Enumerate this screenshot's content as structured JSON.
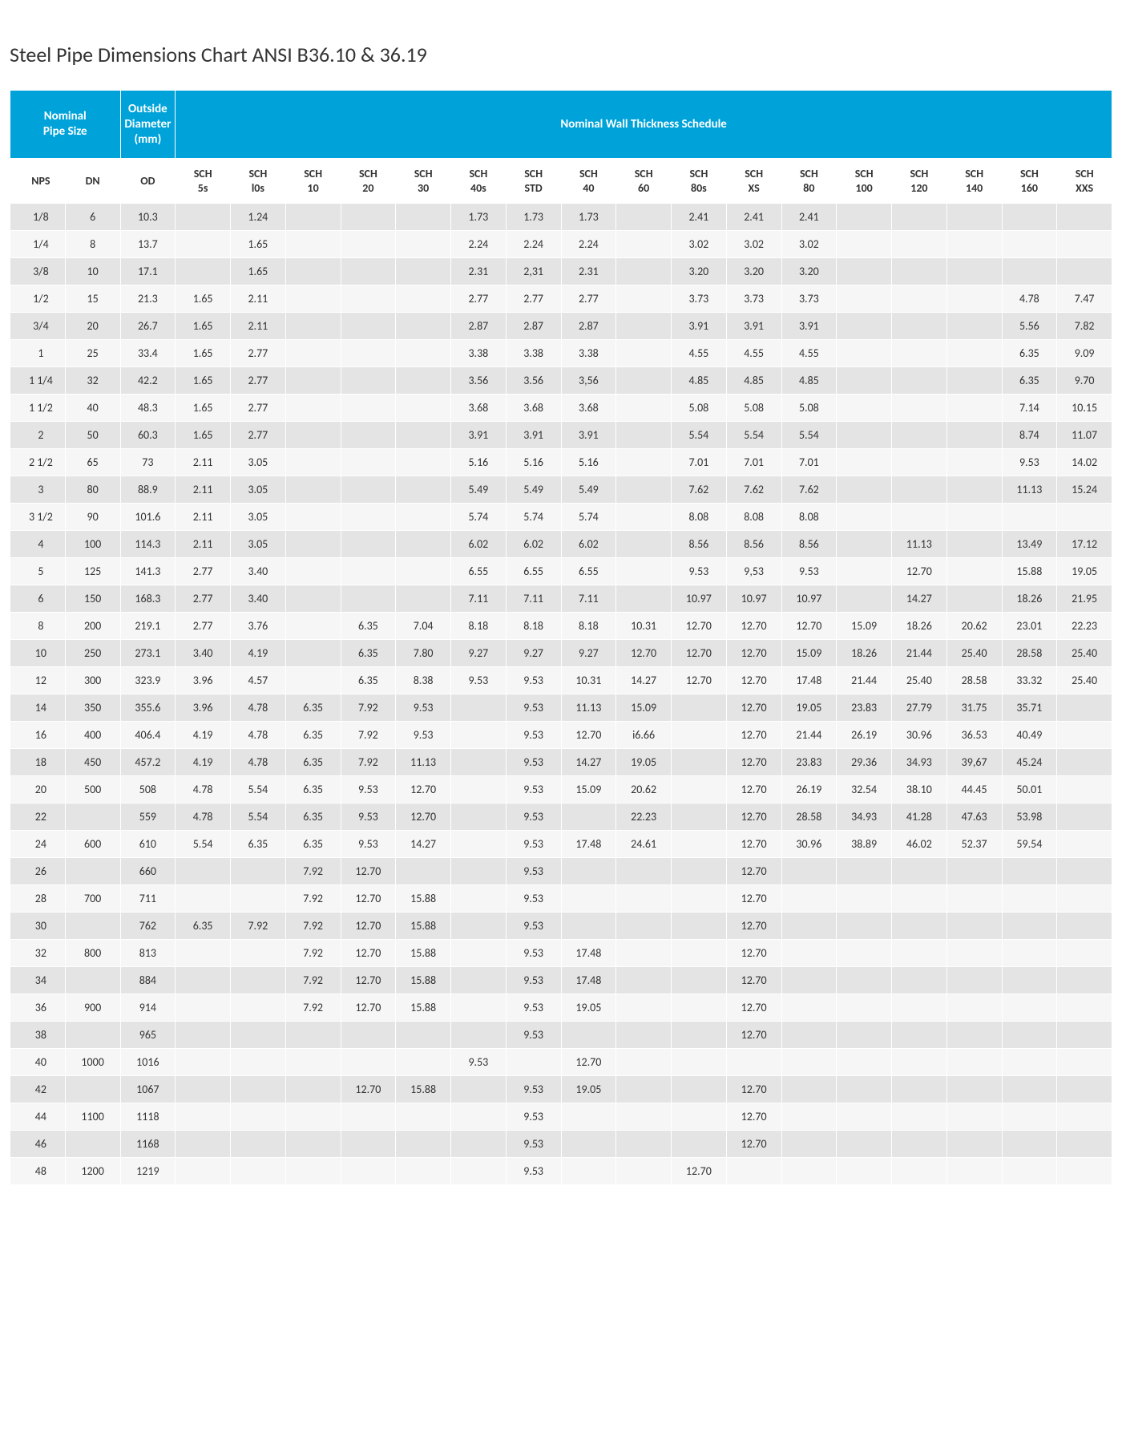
{
  "title": "Steel Pipe Dimensions Chart ANSI B36.10 & 36.19",
  "header_bg": "#00a3d9",
  "header_fg": "#ffffff",
  "row_odd_bg": "#e4e4e4",
  "row_even_bg": "#f6f6f6",
  "groups": [
    {
      "label": "Nominal Pipe Size",
      "span": 2
    },
    {
      "label": "Outside Diameter (mm)",
      "span": 1
    },
    {
      "label": "Nominal Wall Thickness Schedule",
      "span": 17
    }
  ],
  "columns": [
    {
      "key": "nps",
      "label": "NPS",
      "class": "c-nps"
    },
    {
      "key": "dn",
      "label": "DN",
      "class": "c-dn"
    },
    {
      "key": "od",
      "label": "OD",
      "class": "c-od"
    },
    {
      "key": "s5s",
      "label": "SCH\n5s",
      "class": "c-sch"
    },
    {
      "key": "s10s",
      "label": "SCH\nl0s",
      "class": "c-sch"
    },
    {
      "key": "s10",
      "label": "SCH\n10",
      "class": "c-sch"
    },
    {
      "key": "s20",
      "label": "SCH\n20",
      "class": "c-sch"
    },
    {
      "key": "s30",
      "label": "SCH\n30",
      "class": "c-sch"
    },
    {
      "key": "s40s",
      "label": "SCH\n40s",
      "class": "c-sch"
    },
    {
      "key": "sstd",
      "label": "SCH\nSTD",
      "class": "c-sch"
    },
    {
      "key": "s40",
      "label": "SCH\n40",
      "class": "c-sch"
    },
    {
      "key": "s60",
      "label": "SCH\n60",
      "class": "c-sch"
    },
    {
      "key": "s80s",
      "label": "SCH\n80s",
      "class": "c-sch"
    },
    {
      "key": "sxs",
      "label": "SCH\nXS",
      "class": "c-sch"
    },
    {
      "key": "s80",
      "label": "SCH\n80",
      "class": "c-sch"
    },
    {
      "key": "s100",
      "label": "SCH\n100",
      "class": "c-sch"
    },
    {
      "key": "s120",
      "label": "SCH\n120",
      "class": "c-sch"
    },
    {
      "key": "s140",
      "label": "SCH\n140",
      "class": "c-sch"
    },
    {
      "key": "s160",
      "label": "SCH\n160",
      "class": "c-sch"
    },
    {
      "key": "sxxs",
      "label": "SCH\nXXS",
      "class": "c-sch"
    }
  ],
  "rows": [
    {
      "nps": "1/8",
      "dn": "6",
      "od": "10.3",
      "s10s": "1.24",
      "s40s": "1.73",
      "sstd": "1.73",
      "s40": "1.73",
      "s80s": "2.41",
      "sxs": "2.41",
      "s80": "2.41"
    },
    {
      "nps": "1/4",
      "dn": "8",
      "od": "13.7",
      "s10s": "1.65",
      "s40s": "2.24",
      "sstd": "2.24",
      "s40": "2.24",
      "s80s": "3.02",
      "sxs": "3.02",
      "s80": "3.02"
    },
    {
      "nps": "3/8",
      "dn": "10",
      "od": "17.1",
      "s10s": "1.65",
      "s40s": "2.31",
      "sstd": "2,31",
      "s40": "2.31",
      "s80s": "3.20",
      "sxs": "3.20",
      "s80": "3.20"
    },
    {
      "nps": "1/2",
      "dn": "15",
      "od": "21.3",
      "s5s": "1.65",
      "s10s": "2.11",
      "s40s": "2.77",
      "sstd": "2.77",
      "s40": "2.77",
      "s80s": "3.73",
      "sxs": "3.73",
      "s80": "3.73",
      "s160": "4.78",
      "sxxs": "7.47"
    },
    {
      "nps": "3/4",
      "dn": "20",
      "od": "26.7",
      "s5s": "1.65",
      "s10s": "2.11",
      "s40s": "2.87",
      "sstd": "2.87",
      "s40": "2.87",
      "s80s": "3.91",
      "sxs": "3.91",
      "s80": "3.91",
      "s160": "5.56",
      "sxxs": "7.82"
    },
    {
      "nps": "1",
      "dn": "25",
      "od": "33.4",
      "s5s": "1.65",
      "s10s": "2.77",
      "s40s": "3.38",
      "sstd": "3.38",
      "s40": "3.38",
      "s80s": "4.55",
      "sxs": "4.55",
      "s80": "4.55",
      "s160": "6.35",
      "sxxs": "9.09"
    },
    {
      "nps": "1 1/4",
      "dn": "32",
      "od": "42.2",
      "s5s": "1.65",
      "s10s": "2.77",
      "s40s": "3.56",
      "sstd": "3.56",
      "s40": "3,56",
      "s80s": "4.85",
      "sxs": "4.85",
      "s80": "4.85",
      "s160": "6.35",
      "sxxs": "9.70"
    },
    {
      "nps": "1 1/2",
      "dn": "40",
      "od": "48.3",
      "s5s": "1.65",
      "s10s": "2.77",
      "s40s": "3.68",
      "sstd": "3.68",
      "s40": "3.68",
      "s80s": "5.08",
      "sxs": "5.08",
      "s80": "5.08",
      "s160": "7.14",
      "sxxs": "10.15"
    },
    {
      "nps": "2",
      "dn": "50",
      "od": "60.3",
      "s5s": "1.65",
      "s10s": "2.77",
      "s40s": "3.91",
      "sstd": "3.91",
      "s40": "3.91",
      "s80s": "5.54",
      "sxs": "5.54",
      "s80": "5.54",
      "s160": "8.74",
      "sxxs": "11.07"
    },
    {
      "nps": "2 1/2",
      "dn": "65",
      "od": "73",
      "s5s": "2.11",
      "s10s": "3.05",
      "s40s": "5.16",
      "sstd": "5.16",
      "s40": "5.16",
      "s80s": "7.01",
      "sxs": "7.01",
      "s80": "7.01",
      "s160": "9.53",
      "sxxs": "14.02"
    },
    {
      "nps": "3",
      "dn": "80",
      "od": "88.9",
      "s5s": "2.11",
      "s10s": "3.05",
      "s40s": "5.49",
      "sstd": "5.49",
      "s40": "5.49",
      "s80s": "7.62",
      "sxs": "7.62",
      "s80": "7.62",
      "s160": "11.13",
      "sxxs": "15.24"
    },
    {
      "nps": "3 1/2",
      "dn": "90",
      "od": "101.6",
      "s5s": "2.11",
      "s10s": "3.05",
      "s40s": "5.74",
      "sstd": "5.74",
      "s40": "5.74",
      "s80s": "8.08",
      "sxs": "8.08",
      "s80": "8.08"
    },
    {
      "nps": "4",
      "dn": "100",
      "od": "114.3",
      "s5s": "2.11",
      "s10s": "3.05",
      "s40s": "6.02",
      "sstd": "6.02",
      "s40": "6.02",
      "s80s": "8.56",
      "sxs": "8.56",
      "s80": "8.56",
      "s120": "11.13",
      "s160": "13.49",
      "sxxs": "17.12"
    },
    {
      "nps": "5",
      "dn": "125",
      "od": "141.3",
      "s5s": "2.77",
      "s10s": "3.40",
      "s40s": "6.55",
      "sstd": "6.55",
      "s40": "6.55",
      "s80s": "9.53",
      "sxs": "9,53",
      "s80": "9.53",
      "s120": "12.70",
      "s160": "15.88",
      "sxxs": "19.05"
    },
    {
      "nps": "6",
      "dn": "150",
      "od": "168.3",
      "s5s": "2.77",
      "s10s": "3.40",
      "s40s": "7.11",
      "sstd": "7.11",
      "s40": "7.11",
      "s80s": "10.97",
      "sxs": "10.97",
      "s80": "10.97",
      "s120": "14.27",
      "s160": "18.26",
      "sxxs": "21.95"
    },
    {
      "nps": "8",
      "dn": "200",
      "od": "219.1",
      "s5s": "2.77",
      "s10s": "3.76",
      "s20": "6.35",
      "s30": "7.04",
      "s40s": "8.18",
      "sstd": "8.18",
      "s40": "8.18",
      "s60": "10.31",
      "s80s": "12.70",
      "sxs": "12.70",
      "s80": "12.70",
      "s100": "15.09",
      "s120": "18.26",
      "s140": "20.62",
      "s160": "23.01",
      "sxxs": "22.23"
    },
    {
      "nps": "10",
      "dn": "250",
      "od": "273.1",
      "s5s": "3.40",
      "s10s": "4.19",
      "s20": "6.35",
      "s30": "7.80",
      "s40s": "9.27",
      "sstd": "9.27",
      "s40": "9.27",
      "s60": "12.70",
      "s80s": "12.70",
      "sxs": "12.70",
      "s80": "15.09",
      "s100": "18.26",
      "s120": "21.44",
      "s140": "25.40",
      "s160": "28.58",
      "sxxs": "25.40"
    },
    {
      "nps": "12",
      "dn": "300",
      "od": "323.9",
      "s5s": "3.96",
      "s10s": "4.57",
      "s20": "6.35",
      "s30": "8.38",
      "s40s": "9.53",
      "sstd": "9.53",
      "s40": "10.31",
      "s60": "14.27",
      "s80s": "12.70",
      "sxs": "12.70",
      "s80": "17.48",
      "s100": "21.44",
      "s120": "25.40",
      "s140": "28.58",
      "s160": "33.32",
      "sxxs": "25.40"
    },
    {
      "nps": "14",
      "dn": "350",
      "od": "355.6",
      "s5s": "3.96",
      "s10s": "4.78",
      "s10": "6.35",
      "s20": "7.92",
      "s30": "9.53",
      "sstd": "9.53",
      "s40": "11.13",
      "s60": "15.09",
      "sxs": "12.70",
      "s80": "19.05",
      "s100": "23.83",
      "s120": "27.79",
      "s140": "31.75",
      "s160": "35.71"
    },
    {
      "nps": "16",
      "dn": "400",
      "od": "406.4",
      "s5s": "4.19",
      "s10s": "4.78",
      "s10": "6.35",
      "s20": "7.92",
      "s30": "9.53",
      "sstd": "9.53",
      "s40": "12.70",
      "s60": "i6.66",
      "sxs": "12.70",
      "s80": "21.44",
      "s100": "26.19",
      "s120": "30.96",
      "s140": "36.53",
      "s160": "40.49"
    },
    {
      "nps": "18",
      "dn": "450",
      "od": "457.2",
      "s5s": "4.19",
      "s10s": "4.78",
      "s10": "6.35",
      "s20": "7.92",
      "s30": "11.13",
      "sstd": "9.53",
      "s40": "14.27",
      "s60": "19.05",
      "sxs": "12.70",
      "s80": "23.83",
      "s100": "29.36",
      "s120": "34.93",
      "s140": "39,67",
      "s160": "45.24"
    },
    {
      "nps": "20",
      "dn": "500",
      "od": "508",
      "s5s": "4.78",
      "s10s": "5.54",
      "s10": "6.35",
      "s20": "9.53",
      "s30": "12.70",
      "sstd": "9.53",
      "s40": "15.09",
      "s60": "20.62",
      "sxs": "12.70",
      "s80": "26.19",
      "s100": "32.54",
      "s120": "38.10",
      "s140": "44.45",
      "s160": "50.01"
    },
    {
      "nps": "22",
      "dn": "",
      "od": "559",
      "s5s": "4.78",
      "s10s": "5.54",
      "s10": "6.35",
      "s20": "9.53",
      "s30": "12.70",
      "sstd": "9.53",
      "s60": "22.23",
      "sxs": "12.70",
      "s80": "28.58",
      "s100": "34.93",
      "s120": "41.28",
      "s140": "47.63",
      "s160": "53.98"
    },
    {
      "nps": "24",
      "dn": "600",
      "od": "610",
      "s5s": "5.54",
      "s10s": "6.35",
      "s10": "6.35",
      "s20": "9.53",
      "s30": "14.27",
      "sstd": "9.53",
      "s40": "17.48",
      "s60": "24.61",
      "sxs": "12.70",
      "s80": "30.96",
      "s100": "38.89",
      "s120": "46.02",
      "s140": "52.37",
      "s160": "59.54"
    },
    {
      "nps": "26",
      "dn": "",
      "od": "660",
      "s10": "7.92",
      "s20": "12.70",
      "sstd": "9.53",
      "sxs": "12.70"
    },
    {
      "nps": "28",
      "dn": "700",
      "od": "711",
      "s10": "7.92",
      "s20": "12.70",
      "s30": "15.88",
      "sstd": "9.53",
      "sxs": "12.70"
    },
    {
      "nps": "30",
      "dn": "",
      "od": "762",
      "s5s": "6.35",
      "s10s": "7.92",
      "s10": "7.92",
      "s20": "12.70",
      "s30": "15.88",
      "sstd": "9.53",
      "sxs": "12.70"
    },
    {
      "nps": "32",
      "dn": "800",
      "od": "813",
      "s10": "7.92",
      "s20": "12.70",
      "s30": "15.88",
      "sstd": "9.53",
      "s40": "17.48",
      "sxs": "12.70"
    },
    {
      "nps": "34",
      "dn": "",
      "od": "884",
      "s10": "7.92",
      "s20": "12.70",
      "s30": "15.88",
      "sstd": "9.53",
      "s40": "17.48",
      "sxs": "12.70"
    },
    {
      "nps": "36",
      "dn": "900",
      "od": "914",
      "s10": "7.92",
      "s20": "12.70",
      "s30": "15.88",
      "sstd": "9.53",
      "s40": "19.05",
      "sxs": "12.70"
    },
    {
      "nps": "38",
      "dn": "",
      "od": "965",
      "sstd": "9.53",
      "sxs": "12.70"
    },
    {
      "nps": "40",
      "dn": "1000",
      "od": "1016",
      "s40s": "9.53",
      "s40": "12.70"
    },
    {
      "nps": "42",
      "dn": "",
      "od": "1067",
      "s20": "12.70",
      "s30": "15.88",
      "sstd": "9.53",
      "s40": "19.05",
      "sxs": "12.70"
    },
    {
      "nps": "44",
      "dn": "1100",
      "od": "1118",
      "sstd": "9.53",
      "sxs": "12.70"
    },
    {
      "nps": "46",
      "dn": "",
      "od": "1168",
      "sstd": "9.53",
      "sxs": "12.70"
    },
    {
      "nps": "48",
      "dn": "1200",
      "od": "1219",
      "sstd": "9.53",
      "s80s": "12.70"
    }
  ]
}
